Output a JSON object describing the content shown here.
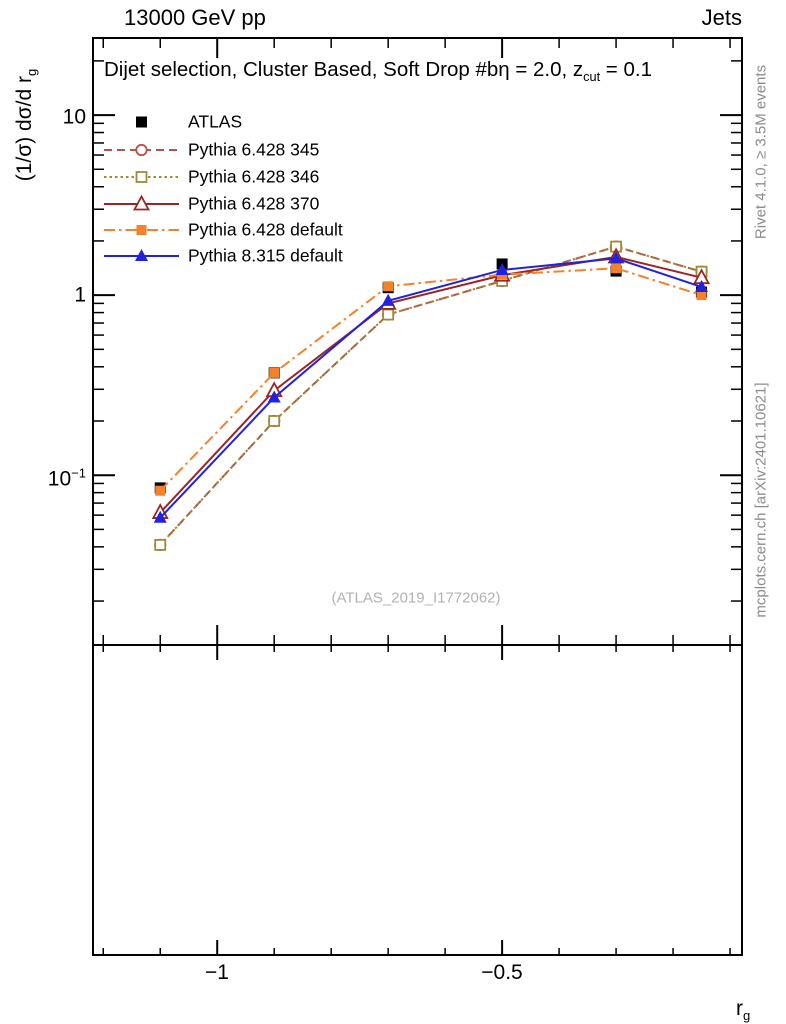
{
  "header": {
    "left": "13000 GeV pp",
    "right": "Jets"
  },
  "panel_title": {
    "prefix": "Dijet selection, Cluster Based, Soft Drop #bη = 2.0, z",
    "sub": "cut",
    "suffix": " = 0.1"
  },
  "y_axis": {
    "label_prefix": "(1/σ) dσ/d r",
    "label_sub": "g",
    "tick_10": "10",
    "tick_1": "1",
    "tick_neg1_base": "10",
    "tick_neg1_exp": "−1"
  },
  "x_axis": {
    "label_prefix": "r",
    "label_sub": "g",
    "tick_m1": "−1",
    "tick_m05": "−0.5"
  },
  "watermark": "(ATLAS_2019_I1772062)",
  "side_notes": {
    "top": "Rivet 4.1.0, ≥ 3.5M events",
    "bottom": "mcplots.cern.ch [arXiv:2401.10621]"
  },
  "chart_data": {
    "type": "line",
    "title": "Dijet selection, Cluster Based, Soft Drop #bη = 2.0, z_cut = 0.1",
    "xlabel": "r_g",
    "ylabel": "(1/σ) dσ/d r_g",
    "x_scale": "linear",
    "y_scale": "log",
    "xlim": [
      -1.218,
      -0.079
    ],
    "ylim": [
      0.0114,
      26.8
    ],
    "x_major_ticks": [
      -1.0,
      -0.5
    ],
    "x_minor_step": 0.1,
    "grid": false,
    "legend_position": "top-left",
    "x": [
      -1.1,
      -0.9,
      -0.7,
      -0.5,
      -0.3,
      -0.15
    ],
    "series": [
      {
        "name": "ATLAS",
        "color": "#000000",
        "marker": "filled-square",
        "line": "none",
        "values": [
          0.085,
          0.37,
          1.1,
          1.49,
          1.36,
          1.04
        ]
      },
      {
        "name": "Pythia 6.428 345",
        "color": "#b5524e",
        "marker": "open-circle",
        "line": "dashed",
        "values": [
          0.041,
          0.2,
          0.78,
          1.2,
          1.86,
          1.35
        ]
      },
      {
        "name": "Pythia 6.428 346",
        "color": "#9e8a38",
        "marker": "open-square",
        "line": "dotted",
        "values": [
          0.041,
          0.2,
          0.78,
          1.2,
          1.86,
          1.35
        ]
      },
      {
        "name": "Pythia 6.428 370",
        "color": "#9c2522",
        "marker": "open-triangle",
        "line": "solid",
        "values": [
          0.062,
          0.295,
          0.9,
          1.29,
          1.63,
          1.25
        ]
      },
      {
        "name": "Pythia 6.428 default",
        "color": "#f5822a",
        "marker": "filled-square",
        "line": "dashdot",
        "values": [
          0.082,
          0.37,
          1.12,
          1.3,
          1.41,
          1.0
        ]
      },
      {
        "name": "Pythia 8.315 default",
        "color": "#2121de",
        "marker": "filled-triangle",
        "line": "solid",
        "values": [
          0.058,
          0.27,
          0.93,
          1.38,
          1.6,
          1.11
        ]
      }
    ]
  }
}
